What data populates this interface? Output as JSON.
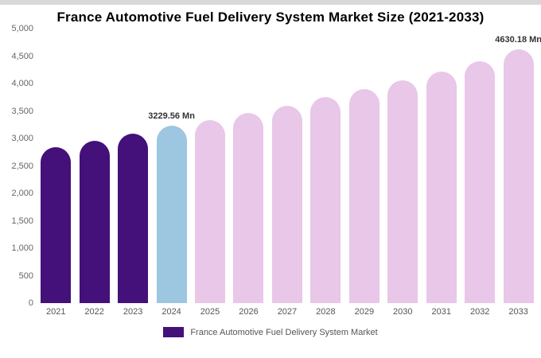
{
  "title": "France Automotive Fuel Delivery System Market Size (2021-2033)",
  "legend": {
    "label": "France Automotive Fuel Delivery System Market",
    "swatch_color": "#44107A"
  },
  "chart_data": {
    "type": "bar",
    "title": "France Automotive Fuel Delivery System Market Size (2021-2033)",
    "xlabel": "",
    "ylabel": "",
    "ylim": [
      0,
      5000
    ],
    "yticks": [
      "0",
      "500",
      "1,000",
      "1,500",
      "2,000",
      "2,500",
      "3,000",
      "3,500",
      "4,000",
      "4,500",
      "5,000"
    ],
    "grid": false,
    "legend_position": "bottom",
    "categories": [
      "2021",
      "2022",
      "2023",
      "2024",
      "2025",
      "2026",
      "2027",
      "2028",
      "2029",
      "2030",
      "2031",
      "2032",
      "2033"
    ],
    "values": [
      2840,
      2960,
      3090,
      3229.56,
      3340,
      3470,
      3600,
      3750,
      3900,
      4060,
      4220,
      4400,
      4630.18
    ],
    "bar_colors": [
      "#44107A",
      "#44107A",
      "#44107A",
      "#9DC6E0",
      "#E8C7E8",
      "#E8C7E8",
      "#E8C7E8",
      "#E8C7E8",
      "#E8C7E8",
      "#E8C7E8",
      "#E8C7E8",
      "#E8C7E8",
      "#E8C7E8"
    ],
    "annotations": [
      {
        "index": 3,
        "text": "3229.56 Mn"
      },
      {
        "index": 12,
        "text": "4630.18 Mn"
      }
    ],
    "series_colors": {
      "historical": "#44107A",
      "base_year": "#9DC6E0",
      "forecast": "#E8C7E8"
    }
  }
}
